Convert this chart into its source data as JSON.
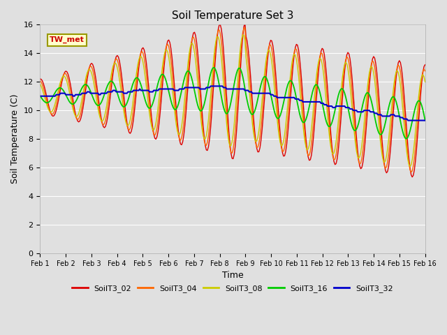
{
  "title": "Soil Temperature Set 3",
  "xlabel": "Time",
  "ylabel": "Soil Temperature (C)",
  "ylim": [
    0,
    16
  ],
  "yticks": [
    0,
    2,
    4,
    6,
    8,
    10,
    12,
    14,
    16
  ],
  "bg_color": "#e0e0e0",
  "grid_color": "#ffffff",
  "annotation_text": "TW_met",
  "annotation_box_facecolor": "#ffffcc",
  "annotation_box_edgecolor": "#999900",
  "annotation_text_color": "#cc0000",
  "series": {
    "SoilT3_02": {
      "color": "#dd0000",
      "lw": 1.0
    },
    "SoilT3_04": {
      "color": "#ff6600",
      "lw": 1.0
    },
    "SoilT3_08": {
      "color": "#cccc00",
      "lw": 1.0
    },
    "SoilT3_16": {
      "color": "#00cc00",
      "lw": 1.3
    },
    "SoilT3_32": {
      "color": "#0000cc",
      "lw": 1.5
    }
  },
  "xtick_labels": [
    "Feb 1",
    "Feb 2",
    "Feb 3",
    "Feb 4",
    "Feb 5",
    "Feb 6",
    "Feb 7",
    "Feb 8",
    "Feb 9",
    "Feb 10",
    "Feb 11",
    "Feb 12",
    "Feb 13",
    "Feb 14",
    "Feb 15",
    "Feb 16"
  ]
}
